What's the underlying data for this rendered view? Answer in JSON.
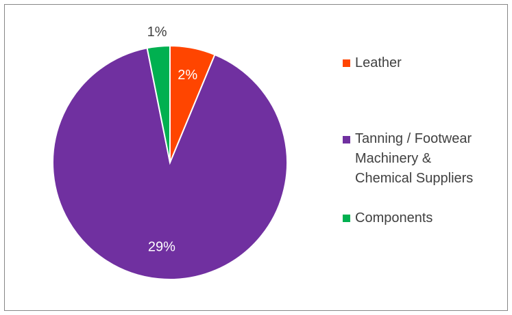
{
  "chart_data": {
    "type": "pie",
    "start_angle_deg": 0,
    "direction": "clockwise",
    "slices": [
      {
        "label": "Leather",
        "value": 2,
        "display": "2%",
        "color": "#FF4500"
      },
      {
        "label": "Tanning / Footwear Machinery & Chemical Suppliers",
        "value": 29,
        "display": "29%",
        "color": "#7030A0"
      },
      {
        "label": "Components",
        "value": 1,
        "display": "1%",
        "color": "#00B050"
      }
    ],
    "legend": {
      "position": "right",
      "items": [
        {
          "lines": [
            "Leather"
          ],
          "color": "#FF4500"
        },
        {
          "lines": [
            "Tanning / Footwear",
            "Machinery &",
            "Chemical Suppliers"
          ],
          "color": "#7030A0"
        },
        {
          "lines": [
            "Components"
          ],
          "color": "#00B050"
        }
      ]
    }
  }
}
